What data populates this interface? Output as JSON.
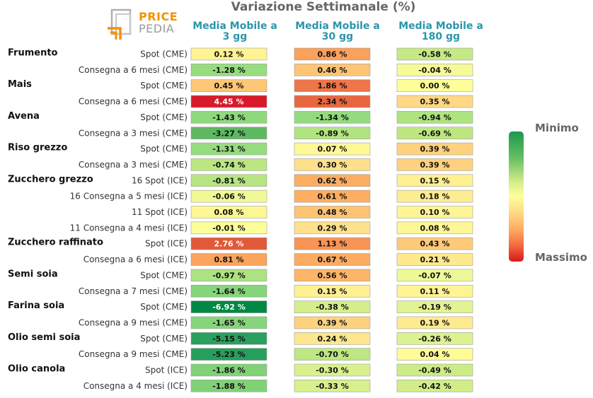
{
  "logo": {
    "word_top": "PRICE",
    "word_bottom": "PEDIA",
    "colors": {
      "orange": "#f39200",
      "gray": "#9a9a9a"
    }
  },
  "chart_data": {
    "type": "heatmap",
    "title": "Variazione Settimanale (%)",
    "columns": [
      "Media Mobile a\n3 gg",
      "Media Mobile a\n30 gg",
      "Media Mobile a\n180 gg"
    ],
    "legend": {
      "min_label": "Minimo",
      "max_label": "Massimo",
      "position": "right"
    },
    "groups": [
      {
        "name": "Frumento",
        "rows": [
          {
            "label": "Spot (CME)",
            "values": [
              0.12,
              0.86,
              -0.58
            ]
          },
          {
            "label": "Consegna a 6 mesi (CME)",
            "values": [
              -1.28,
              0.46,
              -0.04
            ]
          }
        ]
      },
      {
        "name": "Mais",
        "rows": [
          {
            "label": "Spot (CME)",
            "values": [
              0.45,
              1.86,
              0.0
            ]
          },
          {
            "label": "Consegna a 6 mesi (CME)",
            "values": [
              4.45,
              2.34,
              0.35
            ]
          }
        ]
      },
      {
        "name": "Avena",
        "rows": [
          {
            "label": "Spot (CME)",
            "values": [
              -1.43,
              -1.34,
              -0.94
            ]
          },
          {
            "label": "Consegna a 3 mesi (CME)",
            "values": [
              -3.27,
              -0.89,
              -0.69
            ]
          }
        ]
      },
      {
        "name": "Riso grezzo",
        "rows": [
          {
            "label": "Spot (CME)",
            "values": [
              -1.31,
              0.07,
              0.39
            ]
          },
          {
            "label": "Consegna a 3 mesi (CME)",
            "values": [
              -0.74,
              0.3,
              0.39
            ]
          }
        ]
      },
      {
        "name": "Zucchero grezzo",
        "rows": [
          {
            "label": "16 Spot (ICE)",
            "values": [
              -0.81,
              0.62,
              0.15
            ]
          },
          {
            "label": "16 Consegna a 5 mesi (ICE)",
            "values": [
              -0.06,
              0.61,
              0.18
            ]
          },
          {
            "label": "11 Spot (ICE)",
            "values": [
              0.08,
              0.48,
              0.1
            ]
          },
          {
            "label": "11 Consegna a 4 mesi (ICE)",
            "values": [
              -0.01,
              0.29,
              0.08
            ]
          }
        ]
      },
      {
        "name": "Zucchero raffinato",
        "rows": [
          {
            "label": "Spot (ICE)",
            "values": [
              2.76,
              1.13,
              0.43
            ]
          },
          {
            "label": "Consegna a 6 mesi (ICE)",
            "values": [
              0.81,
              0.67,
              0.21
            ]
          }
        ]
      },
      {
        "name": "Semi soia",
        "rows": [
          {
            "label": "Spot (CME)",
            "values": [
              -0.97,
              0.56,
              -0.07
            ]
          },
          {
            "label": "Consegna a 7 mesi (CME)",
            "values": [
              -1.64,
              0.15,
              0.11
            ]
          }
        ]
      },
      {
        "name": "Farina soia",
        "rows": [
          {
            "label": "Spot (CME)",
            "values": [
              -6.92,
              -0.38,
              -0.19
            ]
          },
          {
            "label": "Consegna a 9 mesi (CME)",
            "values": [
              -1.65,
              0.39,
              0.19
            ]
          }
        ]
      },
      {
        "name": "Olio semi soia",
        "rows": [
          {
            "label": "Spot (CME)",
            "values": [
              -5.15,
              0.24,
              -0.26
            ]
          },
          {
            "label": "Consegna a 9 mesi (CME)",
            "values": [
              -5.23,
              -0.7,
              0.04
            ]
          }
        ]
      },
      {
        "name": "Olio canola",
        "rows": [
          {
            "label": "Spot (ICE)",
            "values": [
              -1.86,
              -0.3,
              -0.49
            ]
          },
          {
            "label": "Consegna a 4 mesi (ICE)",
            "values": [
              -1.88,
              -0.33,
              -0.42
            ]
          }
        ]
      }
    ]
  }
}
